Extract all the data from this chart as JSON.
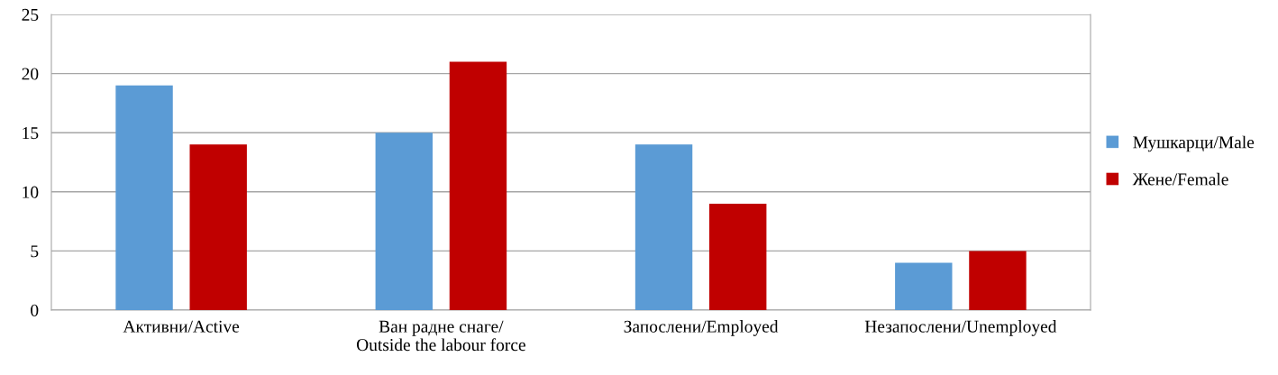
{
  "chart_data": {
    "type": "bar",
    "categories": [
      "Активни/Active",
      "Ван радне снаге/\nOutside the labour force",
      "Запослени/Employed",
      "Незапослени/Unemployed"
    ],
    "series": [
      {
        "name": "Мушкарци/Male",
        "color": "#5b9bd5",
        "values": [
          19,
          15,
          14,
          4
        ]
      },
      {
        "name": "Жене/Female",
        "color": "#c00000",
        "values": [
          14,
          21,
          9,
          5
        ]
      }
    ],
    "ylim": [
      0,
      25
    ],
    "yticks": [
      0,
      5,
      10,
      15,
      20,
      25
    ],
    "grid": "y",
    "legend": "right"
  }
}
